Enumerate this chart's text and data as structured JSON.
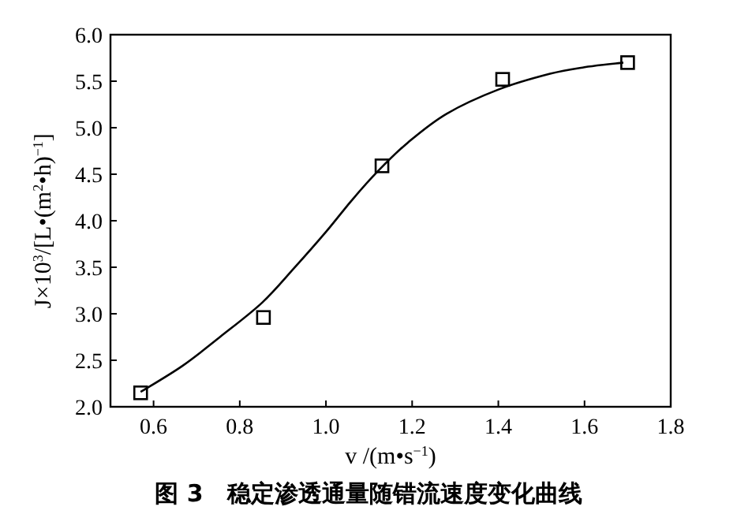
{
  "chart_data": {
    "type": "scatter",
    "title": "图 3　稳定渗透通量随错流速度变化曲线",
    "xlabel": "v /(m•s$^{−1}$)",
    "ylabel": "J×10$^{3}$/[L•(m$^{2}$•h)$^{−1}$]",
    "xlim": [
      0.5,
      1.8
    ],
    "ylim": [
      2.0,
      6.0
    ],
    "xticks": [
      {
        "value": 0.6,
        "label": "0.6"
      },
      {
        "value": 0.8,
        "label": "0.8"
      },
      {
        "value": 1.0,
        "label": "1.0"
      },
      {
        "value": 1.2,
        "label": "1.2"
      },
      {
        "value": 1.4,
        "label": "1.4"
      },
      {
        "value": 1.6,
        "label": "1.6"
      },
      {
        "value": 1.8,
        "label": "1.8"
      }
    ],
    "yticks": [
      {
        "value": 2.0,
        "label": "2.0"
      },
      {
        "value": 2.5,
        "label": "2.5"
      },
      {
        "value": 3.0,
        "label": "3.0"
      },
      {
        "value": 3.5,
        "label": "3.5"
      },
      {
        "value": 4.0,
        "label": "4.0"
      },
      {
        "value": 4.5,
        "label": "4.5"
      },
      {
        "value": 5.0,
        "label": "5.0"
      },
      {
        "value": 5.5,
        "label": "5.5"
      },
      {
        "value": 6.0,
        "label": "6.0"
      }
    ],
    "grid": false,
    "series": [
      {
        "marker": "square",
        "color": "#000000",
        "x": [
          0.57,
          0.855,
          1.13,
          1.41,
          1.7
        ],
        "values": [
          2.15,
          2.96,
          4.59,
          5.52,
          5.7
        ]
      },
      {
        "type": "line",
        "marker": "none",
        "line_style": "solid",
        "color": "#000000",
        "x": [
          0.57,
          0.667,
          0.754,
          0.852,
          0.926,
          1.0,
          1.06,
          1.12,
          1.19,
          1.28,
          1.4,
          1.52,
          1.6,
          1.69
        ],
        "values": [
          2.16,
          2.44,
          2.75,
          3.12,
          3.49,
          3.88,
          4.22,
          4.53,
          4.84,
          5.15,
          5.41,
          5.58,
          5.65,
          5.7
        ]
      }
    ]
  }
}
